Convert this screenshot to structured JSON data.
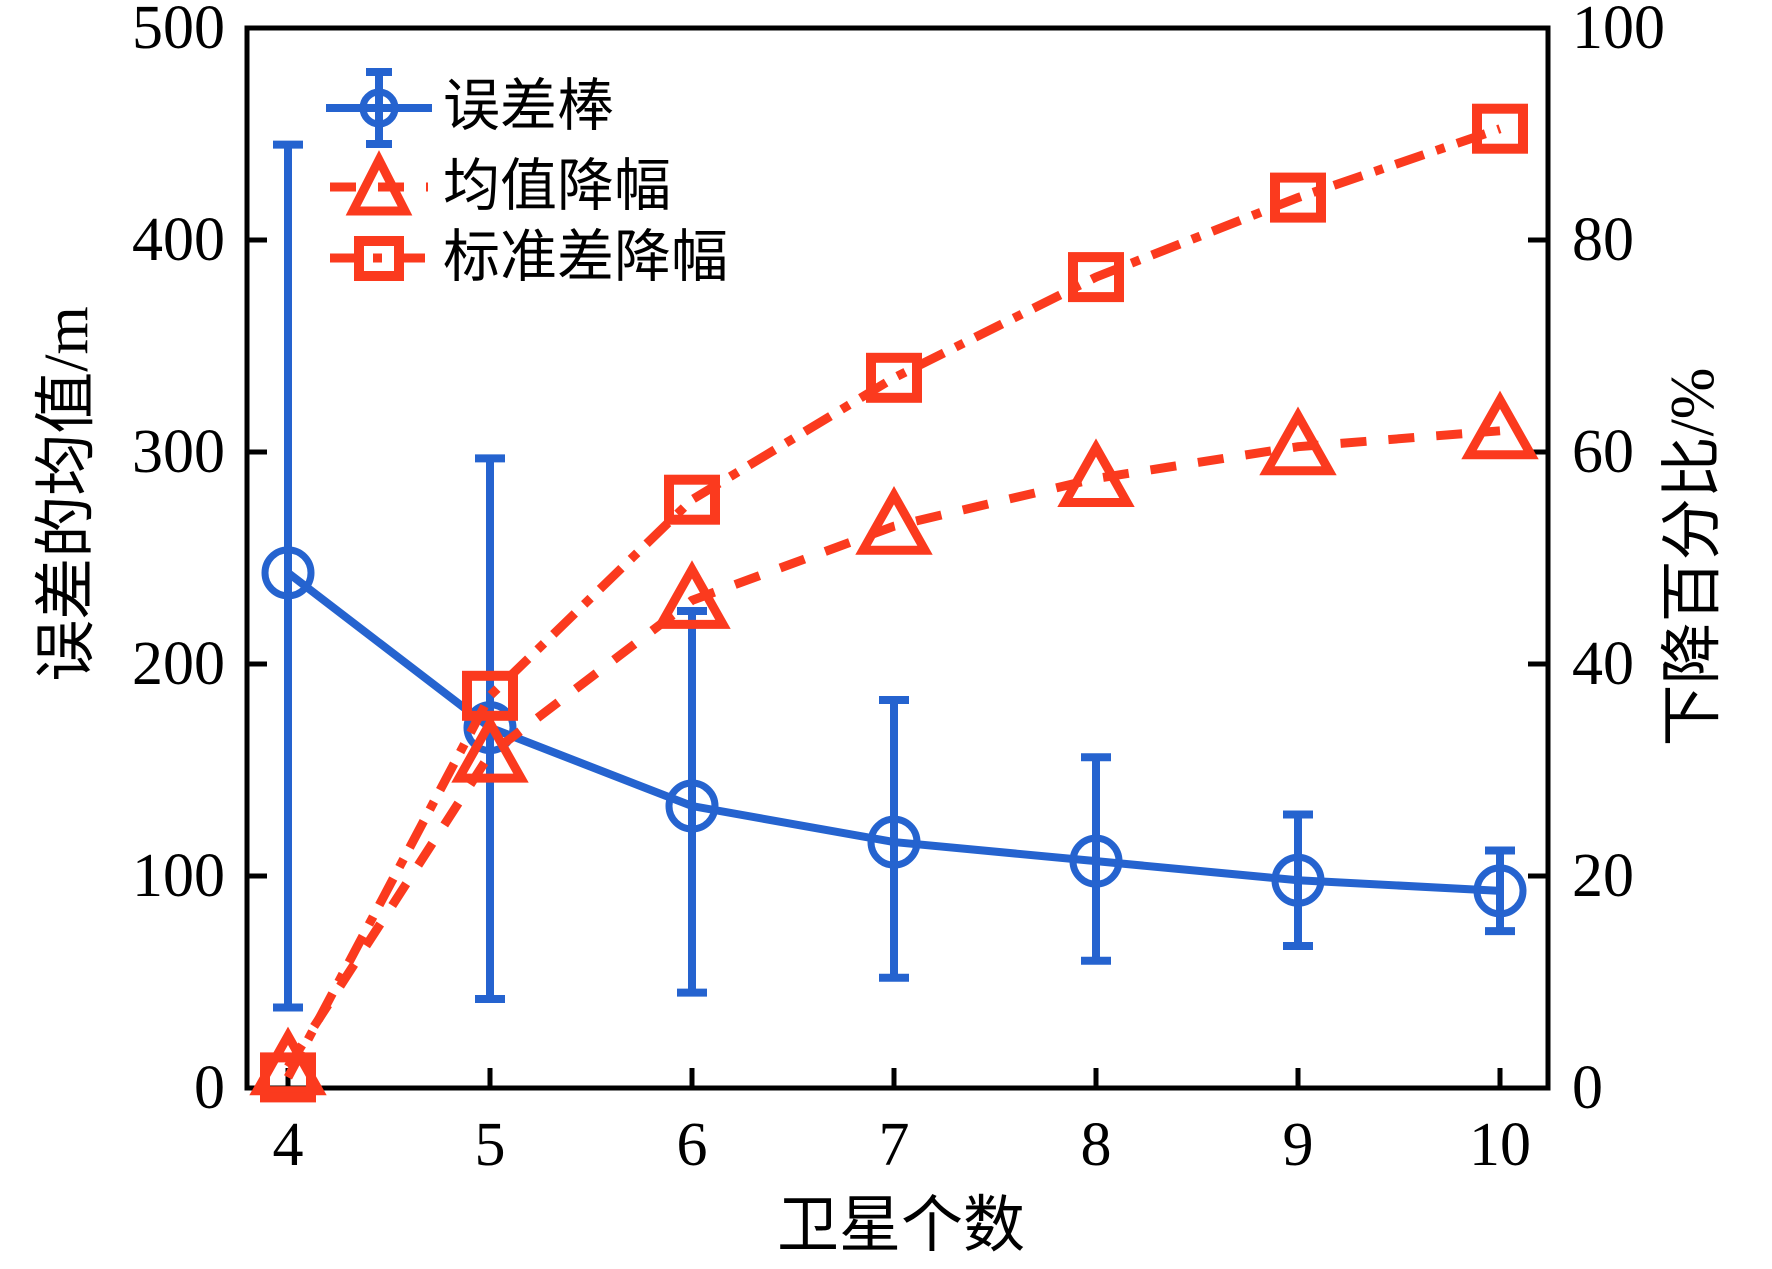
{
  "figure": {
    "xlabel": "卫星个数",
    "ylabel_left": "误差的均值/m",
    "ylabel_right": "下降百分比/%"
  },
  "legend": {
    "position": "upper-left",
    "items": [
      {
        "label": "误差棒"
      },
      {
        "label": "均值降幅"
      },
      {
        "label": "标准差降幅"
      }
    ]
  },
  "colors": {
    "blue": "#2563cf",
    "red": "#fb3a1e",
    "axis": "#000000",
    "background": "#ffffff"
  },
  "chart_data": {
    "type": "line",
    "x": [
      4,
      5,
      6,
      7,
      8,
      9,
      10
    ],
    "series": [
      {
        "name": "误差棒",
        "axis": "left",
        "marker": "circle",
        "linestyle": "solid",
        "color_key": "blue",
        "values": [
          243,
          170,
          133,
          116,
          107,
          98,
          93
        ],
        "error_upper": [
          445,
          297,
          225,
          183,
          156,
          129,
          112
        ],
        "error_lower": [
          38,
          42,
          45,
          52,
          60,
          67,
          74
        ]
      },
      {
        "name": "均值降幅",
        "axis": "right",
        "marker": "triangle",
        "linestyle": "dashed",
        "color_key": "red",
        "values": [
          2,
          31.5,
          46,
          53,
          57.5,
          60.5,
          62
        ]
      },
      {
        "name": "标准差降幅",
        "axis": "right",
        "marker": "square",
        "linestyle": "dashdot",
        "color_key": "red",
        "values": [
          1,
          37,
          55.5,
          67,
          76.5,
          84,
          90.5
        ]
      }
    ],
    "axes": {
      "x": {
        "label": "卫星个数",
        "ticks": [
          4,
          5,
          6,
          7,
          8,
          9,
          10
        ]
      },
      "y_left": {
        "label": "误差的均值/m",
        "ticks": [
          0,
          100,
          200,
          300,
          400,
          500
        ],
        "range": [
          0,
          500
        ]
      },
      "y_right": {
        "label": "下降百分比/%",
        "ticks": [
          0,
          20,
          40,
          60,
          80,
          100
        ],
        "range": [
          0,
          100
        ]
      }
    },
    "grid": false,
    "legend_position": "upper-left"
  }
}
